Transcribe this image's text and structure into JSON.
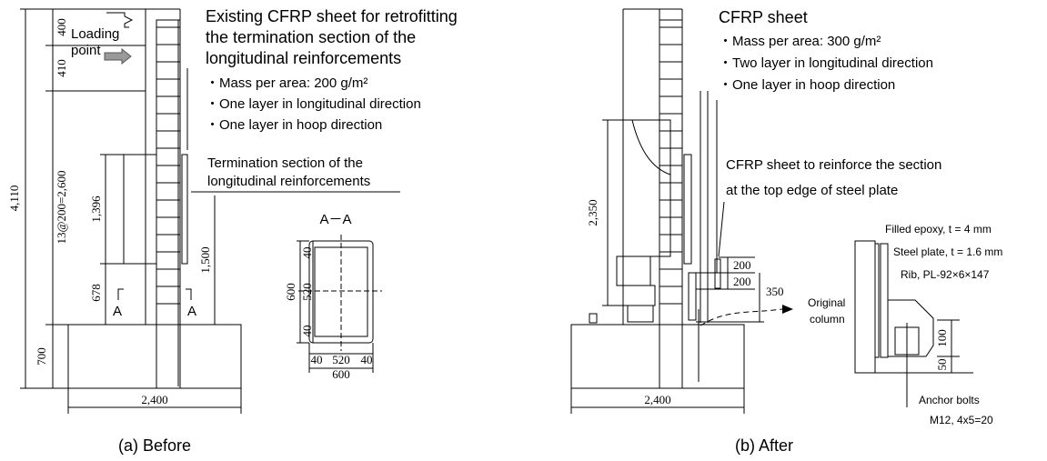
{
  "panel_a": {
    "loading_point": [
      "Loading",
      "point"
    ],
    "heading": [
      "Existing CFRP sheet for retrofitting",
      "the termination section of the",
      "longitudinal reinforcements"
    ],
    "bullets": [
      "・Mass per area: 200 g/m²",
      "・One layer in longitudinal direction",
      "・One layer in hoop direction"
    ],
    "termination_label": [
      "Termination section of the",
      "longitudinal reinforcements"
    ],
    "dimensions": [
      "400",
      "410",
      "4,110",
      "13@200=2,600",
      "1,396",
      "678",
      "700",
      "1,500",
      "2,400"
    ],
    "section_marks": [
      "A",
      "A"
    ],
    "section": {
      "title": "A－A",
      "left_dims": [
        "600",
        "40",
        "520",
        "40"
      ],
      "bottom_dims": [
        "40",
        "520",
        "40",
        "600"
      ]
    },
    "caption": "(a)  Before"
  },
  "panel_b": {
    "heading": "CFRP sheet",
    "bullets": [
      "・Mass per area: 300 g/m²",
      "・Two layer in longitudinal direction",
      "・One layer in hoop direction"
    ],
    "top_edge_label": [
      "CFRP sheet to reinforce the section",
      "at the top edge of steel plate"
    ],
    "dimensions": [
      "2,350",
      "200",
      "200",
      "350",
      "2,400"
    ],
    "detail": {
      "epoxy": "Filled epoxy, t = 4 mm",
      "plate": "Steel plate, t = 1.6 mm",
      "rib": "Rib, PL-92×6×147",
      "column": [
        "Original",
        "column"
      ],
      "dims": [
        "100",
        "50"
      ],
      "bolts": [
        "Anchor bolts",
        "M12, 4x5=20"
      ]
    },
    "caption": "(b)   After"
  }
}
